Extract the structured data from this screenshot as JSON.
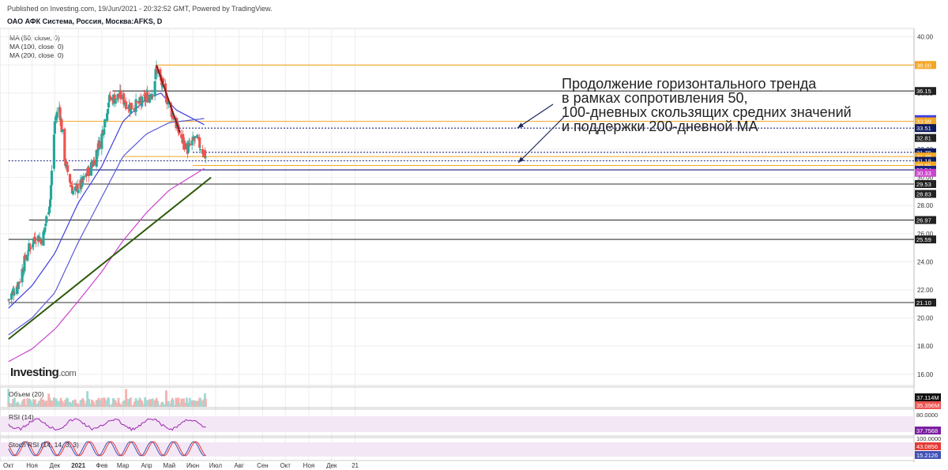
{
  "header": {
    "published": "Published on Investing.com, 19/Jun/2021 - 20:32:52 GMT, Powered by TradingView.",
    "symbol": "ОАО АФК Система, Россия, Москва:AFKS, D"
  },
  "indicators": [
    "MA (50, close, 0)",
    "MA (100, close, 0)",
    "MA (200, close, 0)"
  ],
  "annotation": [
    "Продолжение горизонтального тренда",
    "в рамках сопротивления 50,",
    "100-дневных скользящих средних значений",
    "и поддержки 200-дневной МА"
  ],
  "logo": {
    "main": "Investing",
    "suffix": ".com"
  },
  "colors": {
    "up": "#26a69a",
    "down": "#ef5350",
    "ma50": "#3f3fe0",
    "ma100": "#5b5bd6",
    "ma200": "#cc44cc",
    "trend": "#2d5a0a",
    "resistance": "#8b1a1a",
    "orange": "#f5a623",
    "grid": "#eeeeee",
    "axis_text": "#333333"
  },
  "chart_data": {
    "type": "candlestick",
    "x_tick_labels": [
      "Окт",
      "Ноя",
      "Дек",
      "2021",
      "Фев",
      "Мар",
      "Апр",
      "Май",
      "Июн",
      "Июл",
      "Авг",
      "Сен",
      "Окт",
      "Ноя",
      "Дек",
      "21"
    ],
    "y_ticks": [
      16.0,
      18.0,
      20.0,
      22.0,
      24.0,
      26.0,
      28.0,
      30.0,
      32.0,
      34.0,
      36.0,
      38.0,
      40.0
    ],
    "ylim": [
      15.2,
      40.6
    ],
    "price_series": [
      {
        "date": "2020-10-01",
        "close": 21.3
      },
      {
        "date": "2020-10-15",
        "close": 22.6
      },
      {
        "date": "2020-10-25",
        "close": 24.6
      },
      {
        "date": "2020-11-05",
        "close": 25.8
      },
      {
        "date": "2020-11-15",
        "close": 25.6
      },
      {
        "date": "2020-11-25",
        "close": 28.5
      },
      {
        "date": "2020-12-01",
        "close": 34.0
      },
      {
        "date": "2020-12-07",
        "close": 35.0
      },
      {
        "date": "2020-12-15",
        "close": 31.0
      },
      {
        "date": "2020-12-25",
        "close": 29.0
      },
      {
        "date": "2021-01-05",
        "close": 29.5
      },
      {
        "date": "2021-01-20",
        "close": 31.0
      },
      {
        "date": "2021-02-01",
        "close": 33.0
      },
      {
        "date": "2021-02-10",
        "close": 35.5
      },
      {
        "date": "2021-02-25",
        "close": 35.8
      },
      {
        "date": "2021-03-10",
        "close": 35.0
      },
      {
        "date": "2021-03-25",
        "close": 35.3
      },
      {
        "date": "2021-04-10",
        "close": 36.2
      },
      {
        "date": "2021-04-14",
        "close": 37.8
      },
      {
        "date": "2021-04-25",
        "close": 36.0
      },
      {
        "date": "2021-05-05",
        "close": 34.5
      },
      {
        "date": "2021-05-15",
        "close": 33.0
      },
      {
        "date": "2021-05-25",
        "close": 32.0
      },
      {
        "date": "2021-06-05",
        "close": 32.8
      },
      {
        "date": "2021-06-18",
        "close": 31.5
      }
    ],
    "ma50": [
      {
        "date": "2020-10-01",
        "value": 20.7
      },
      {
        "date": "2020-11-01",
        "value": 22.3
      },
      {
        "date": "2020-12-01",
        "value": 24.6
      },
      {
        "date": "2021-01-01",
        "value": 28.2
      },
      {
        "date": "2021-02-01",
        "value": 30.8
      },
      {
        "date": "2021-03-01",
        "value": 34.0
      },
      {
        "date": "2021-04-01",
        "value": 35.6
      },
      {
        "date": "2021-04-20",
        "value": 36.0
      },
      {
        "date": "2021-05-10",
        "value": 34.8
      },
      {
        "date": "2021-06-18",
        "value": 33.7
      }
    ],
    "ma100": [
      {
        "date": "2020-10-01",
        "value": 18.8
      },
      {
        "date": "2020-11-01",
        "value": 20.0
      },
      {
        "date": "2020-12-01",
        "value": 21.8
      },
      {
        "date": "2021-01-01",
        "value": 25.4
      },
      {
        "date": "2021-02-01",
        "value": 28.6
      },
      {
        "date": "2021-03-01",
        "value": 31.5
      },
      {
        "date": "2021-04-01",
        "value": 33.1
      },
      {
        "date": "2021-05-01",
        "value": 33.9
      },
      {
        "date": "2021-06-18",
        "value": 34.2
      }
    ],
    "ma200": [
      {
        "date": "2020-10-01",
        "value": 16.9
      },
      {
        "date": "2020-11-01",
        "value": 17.8
      },
      {
        "date": "2020-12-01",
        "value": 19.2
      },
      {
        "date": "2021-01-01",
        "value": 21.2
      },
      {
        "date": "2021-02-01",
        "value": 23.3
      },
      {
        "date": "2021-03-01",
        "value": 25.5
      },
      {
        "date": "2021-04-01",
        "value": 27.5
      },
      {
        "date": "2021-05-01",
        "value": 29.1
      },
      {
        "date": "2021-06-18",
        "value": 30.7
      }
    ],
    "trendline_support": [
      {
        "date": "2020-10-01",
        "value": 18.5
      },
      {
        "date": "2021-06-25",
        "value": 30.0
      }
    ],
    "trendline_resistance": [
      {
        "date": "2021-04-14",
        "value": 38.0
      },
      {
        "date": "2021-05-15",
        "value": 33.2
      }
    ],
    "horizontal_levels": [
      {
        "value": 38.0,
        "label": "38.00",
        "style": "orange",
        "from": "2021-04-14"
      },
      {
        "value": 36.15,
        "label": "36.15",
        "style": "black",
        "from": "2021-02-15"
      },
      {
        "value": 34.15,
        "label": "34.15",
        "style": "tag-blue"
      },
      {
        "value": 33.99,
        "label": "33.99",
        "style": "orange",
        "from": "2020-12-01"
      },
      {
        "value": 33.51,
        "label": "33.51",
        "style": "dotted",
        "from": "2021-05-10"
      },
      {
        "value": 32.81,
        "label": "32.81",
        "style": "tag"
      },
      {
        "value": 31.79,
        "label": "31.79",
        "style": "dotted",
        "from": "2021-06-01"
      },
      {
        "value": 31.49,
        "label": "31.49",
        "style": "orange",
        "from": "2021-03-01"
      },
      {
        "value": 31.18,
        "label": "31.18",
        "style": "dotted",
        "from": "2020-10-01"
      },
      {
        "value": 30.85,
        "label": "30.85",
        "style": "orange",
        "from": "2021-06-01"
      },
      {
        "value": 30.54,
        "label": "30.54",
        "style": "navy",
        "from": "2020-12-25"
      },
      {
        "value": 30.33,
        "label": "30.33",
        "style": "tag-orange"
      },
      {
        "value": 29.53,
        "label": "29.53",
        "style": "black",
        "from": "2020-12-25"
      },
      {
        "value": 28.83,
        "label": "28.83",
        "style": "tag"
      },
      {
        "value": 26.97,
        "label": "26.97",
        "style": "black",
        "from": "2020-10-28"
      },
      {
        "value": 25.59,
        "label": "25.59",
        "style": "black",
        "from": "2020-10-01"
      },
      {
        "value": 21.1,
        "label": "21.10",
        "style": "black",
        "from": "2020-10-01"
      }
    ],
    "volume": {
      "label": "Объем (20)",
      "values": [
        "37.114M",
        "35.396M"
      ]
    },
    "rsi": {
      "label": "RSI (14)",
      "levels": [
        "80.0000"
      ],
      "value": "37.7568"
    },
    "stoch_rsi": {
      "label": "Stoch RSI (14, 14, 3, 3)",
      "values": [
        "100.0000",
        "43.0856",
        "15.2126"
      ]
    }
  }
}
